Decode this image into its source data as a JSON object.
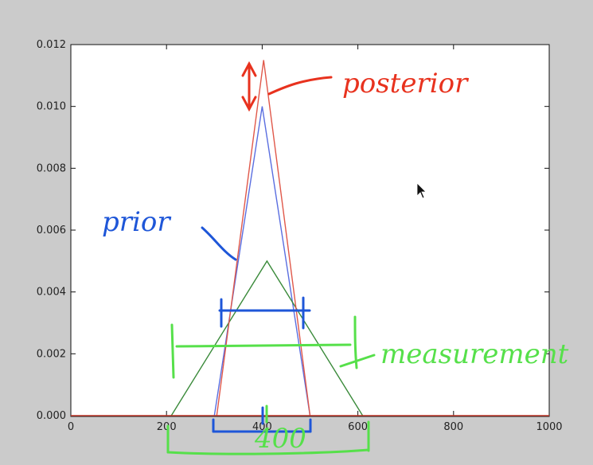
{
  "chart_data": {
    "type": "line",
    "title": "",
    "xlabel": "",
    "ylabel": "",
    "xlim": [
      0,
      1000
    ],
    "ylim": [
      0,
      0.012
    ],
    "x_ticks": [
      "0",
      "200",
      "400",
      "600",
      "800",
      "1000"
    ],
    "y_ticks": [
      "0.000",
      "0.002",
      "0.004",
      "0.006",
      "0.008",
      "0.010",
      "0.012"
    ],
    "grid": false,
    "series": [
      {
        "name": "prior",
        "color": "#5a6ee0",
        "x": [
          300,
          400,
          500
        ],
        "y": [
          0,
          0.01,
          0
        ]
      },
      {
        "name": "measurement",
        "color": "#3a8a3a",
        "x": [
          210,
          410,
          610
        ],
        "y": [
          0,
          0.005,
          0
        ]
      },
      {
        "name": "posterior",
        "color": "#e0584a",
        "x": [
          305,
          403,
          500
        ],
        "y": [
          0,
          0.0115,
          0
        ]
      }
    ],
    "annotations": [
      {
        "text": "posterior",
        "color": "#e8321e"
      },
      {
        "text": "prior",
        "color": "#1e56d8"
      },
      {
        "text": "measurement",
        "color": "#56e04a"
      },
      {
        "text": "400",
        "color": "#56e04a"
      }
    ]
  }
}
